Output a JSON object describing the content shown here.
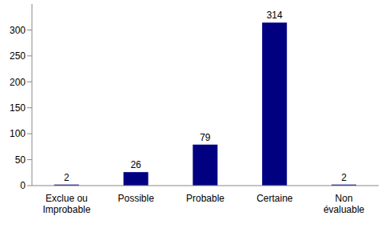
{
  "chart_data": {
    "type": "bar",
    "categories": [
      "Exclue ou\nImprobable",
      "Possible",
      "Probable",
      "Certaine",
      "Non\névaluable"
    ],
    "values": [
      2,
      26,
      79,
      314,
      2
    ],
    "color": "#000080",
    "ylim": [
      0,
      350
    ],
    "yticks": [
      0,
      50,
      100,
      150,
      200,
      250,
      300
    ],
    "grid": false,
    "data_labels": true
  }
}
